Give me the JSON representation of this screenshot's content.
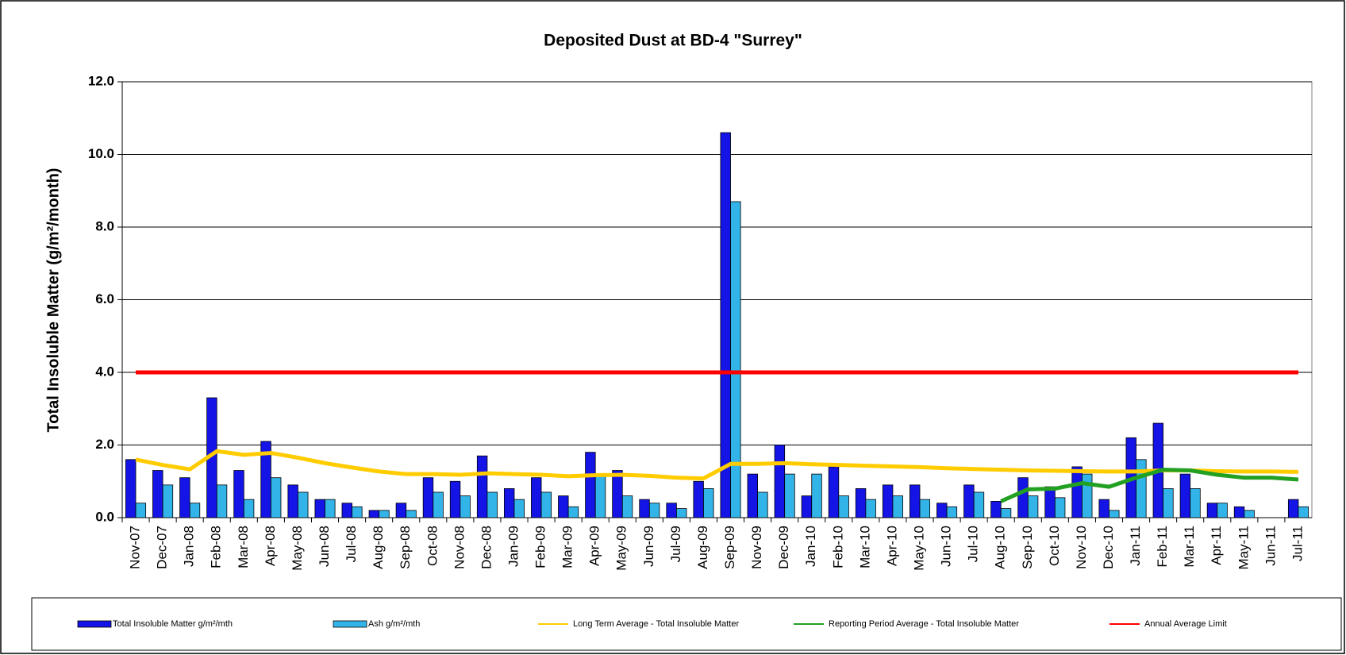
{
  "chart_data": {
    "type": "bar",
    "title": "Deposited Dust at BD-4 \"Surrey\"",
    "y_label": "Total Insoluble Matter (g/m²/month)",
    "categories": [
      "Nov-07",
      "Dec-07",
      "Jan-08",
      "Feb-08",
      "Mar-08",
      "Apr-08",
      "May-08",
      "Jun-08",
      "Jul-08",
      "Aug-08",
      "Sep-08",
      "Oct-08",
      "Nov-08",
      "Dec-08",
      "Jan-09",
      "Feb-09",
      "Mar-09",
      "Apr-09",
      "May-09",
      "Jun-09",
      "Jul-09",
      "Aug-09",
      "Sep-09",
      "Nov-09",
      "Dec-09",
      "Jan-10",
      "Feb-10",
      "Mar-10",
      "Apr-10",
      "May-10",
      "Jun-10",
      "Jul-10",
      "Aug-10",
      "Sep-10",
      "Oct-10",
      "Nov-10",
      "Dec-10",
      "Jan-11",
      "Feb-11",
      "Mar-11",
      "Apr-11",
      "May-11",
      "Jun-11",
      "Jul-11"
    ],
    "series": [
      {
        "name": "Total Insoluble Matter  g/m²/mth",
        "type": "bar",
        "color": "#1414e6",
        "values": [
          1.6,
          1.3,
          1.1,
          3.3,
          1.3,
          2.1,
          0.9,
          0.5,
          0.4,
          0.2,
          0.4,
          1.1,
          1.0,
          1.7,
          0.8,
          1.1,
          0.6,
          1.8,
          1.3,
          0.5,
          0.4,
          1.0,
          10.6,
          1.2,
          2.0,
          0.6,
          1.4,
          0.8,
          0.9,
          0.9,
          0.4,
          0.9,
          0.45,
          1.1,
          0.85,
          1.4,
          0.5,
          2.2,
          2.6,
          1.2,
          0.4,
          0.3,
          null,
          0.5
        ]
      },
      {
        "name": "Ash  g/m²/mth",
        "type": "bar",
        "color": "#33b4e8",
        "values": [
          0.4,
          0.9,
          0.4,
          0.9,
          0.5,
          1.1,
          0.7,
          0.5,
          0.3,
          0.2,
          0.2,
          0.7,
          0.6,
          0.7,
          0.5,
          0.7,
          0.3,
          1.2,
          0.6,
          0.4,
          0.25,
          0.8,
          8.7,
          0.7,
          1.2,
          1.2,
          0.6,
          0.5,
          0.6,
          0.5,
          0.3,
          0.7,
          0.25,
          0.6,
          0.55,
          1.2,
          0.2,
          1.6,
          0.8,
          0.8,
          0.4,
          0.2,
          null,
          0.3
        ]
      },
      {
        "name": "Long Term Average - Total Insoluble Matter",
        "type": "line",
        "color": "#ffcc00",
        "values": [
          1.6,
          1.45,
          1.33,
          1.83,
          1.73,
          1.78,
          1.65,
          1.5,
          1.38,
          1.27,
          1.2,
          1.2,
          1.18,
          1.22,
          1.2,
          1.18,
          1.14,
          1.17,
          1.18,
          1.15,
          1.1,
          1.08,
          1.48,
          1.48,
          1.5,
          1.47,
          1.45,
          1.43,
          1.41,
          1.39,
          1.36,
          1.34,
          1.32,
          1.3,
          1.29,
          1.28,
          1.27,
          1.27,
          1.3,
          1.3,
          1.28,
          1.27,
          1.27,
          1.26
        ]
      },
      {
        "name": "Reporting Period Average - Total Insoluble Matter",
        "type": "line",
        "color": "#22a022",
        "values": [
          null,
          null,
          null,
          null,
          null,
          null,
          null,
          null,
          null,
          null,
          null,
          null,
          null,
          null,
          null,
          null,
          null,
          null,
          null,
          null,
          null,
          null,
          null,
          null,
          null,
          null,
          null,
          null,
          null,
          null,
          null,
          null,
          0.45,
          0.78,
          0.8,
          0.95,
          0.85,
          1.1,
          1.32,
          1.3,
          1.18,
          1.1,
          1.1,
          1.05
        ]
      },
      {
        "name": "Annual Average Limit",
        "type": "line",
        "color": "#ff0000",
        "values": [
          4.0,
          4.0,
          4.0,
          4.0,
          4.0,
          4.0,
          4.0,
          4.0,
          4.0,
          4.0,
          4.0,
          4.0,
          4.0,
          4.0,
          4.0,
          4.0,
          4.0,
          4.0,
          4.0,
          4.0,
          4.0,
          4.0,
          4.0,
          4.0,
          4.0,
          4.0,
          4.0,
          4.0,
          4.0,
          4.0,
          4.0,
          4.0,
          4.0,
          4.0,
          4.0,
          4.0,
          4.0,
          4.0,
          4.0,
          4.0,
          4.0,
          4.0,
          4.0,
          4.0
        ]
      }
    ],
    "ylim": [
      0,
      12
    ],
    "yticks": [
      {
        "value": 0,
        "label": "0.0"
      },
      {
        "value": 2,
        "label": "2.0"
      },
      {
        "value": 4,
        "label": "4.0"
      },
      {
        "value": 6,
        "label": "6.0"
      },
      {
        "value": 8,
        "label": "8.0"
      },
      {
        "value": 10,
        "label": "10.0"
      },
      {
        "value": 12,
        "label": "12.0"
      }
    ],
    "grid": true,
    "legend": "bottom"
  }
}
